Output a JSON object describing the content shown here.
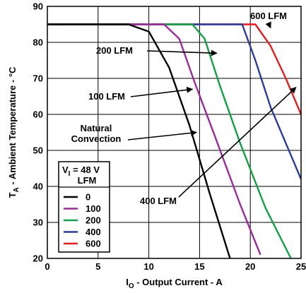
{
  "chart_data": {
    "type": "line",
    "title": "",
    "xlabel": {
      "prefix": "I",
      "sub": "O",
      "suffix": " - Output Current - A"
    },
    "ylabel": {
      "prefix": "T",
      "sub": "A",
      "suffix": " - Ambient Temperature - °C"
    },
    "xlim": [
      0,
      25
    ],
    "ylim": [
      20,
      90
    ],
    "xticks": [
      0,
      5,
      10,
      15,
      20,
      25
    ],
    "yticks": [
      20,
      30,
      40,
      50,
      60,
      70,
      80,
      90
    ],
    "grid": true,
    "legend": {
      "placement": "bottom-left",
      "title_line1": {
        "prefix": "V",
        "sub": "I",
        "suffix": " = 48 V"
      },
      "title_line2": "LFM"
    },
    "series": [
      {
        "name": "0",
        "color": "#000000",
        "x": [
          0,
          8.0,
          10.0,
          12.0,
          14.0,
          16.0,
          18.0
        ],
        "y": [
          85,
          85,
          83,
          73,
          57,
          38,
          20
        ]
      },
      {
        "name": "100",
        "color": "#9b2a9b",
        "x": [
          0,
          11.5,
          13.0,
          14.5,
          16.5,
          19.0,
          21.0
        ],
        "y": [
          85,
          85,
          81,
          69,
          54,
          35,
          21
        ]
      },
      {
        "name": "200",
        "color": "#11a044",
        "x": [
          0,
          14.3,
          15.5,
          17.0,
          19.0,
          21.5,
          24.0
        ],
        "y": [
          85,
          85,
          81,
          68,
          52,
          34,
          20
        ]
      },
      {
        "name": "400",
        "color": "#283c9a",
        "x": [
          0,
          19.2,
          20.5,
          22.0,
          23.5,
          25.0
        ],
        "y": [
          85,
          85,
          75,
          62,
          52,
          42
        ]
      },
      {
        "name": "600",
        "color": "#e31c1c",
        "x": [
          0,
          20.5,
          22.0,
          23.5,
          25.0
        ],
        "y": [
          85,
          85,
          79,
          70,
          60
        ]
      }
    ],
    "annotations": [
      {
        "id": "600",
        "text": "600 LFM",
        "lines": [
          "600 LFM"
        ],
        "arrow_to": [
          22.0,
          84
        ]
      },
      {
        "id": "200",
        "text": "200 LFM",
        "lines": [
          "200 LFM"
        ],
        "arrow_to": [
          16.7,
          77
        ]
      },
      {
        "id": "100",
        "text": "100 LFM",
        "lines": [
          "100 LFM"
        ],
        "arrow_to": [
          14.3,
          67
        ]
      },
      {
        "id": "nc",
        "text": "Natural Convection",
        "lines": [
          "Natural",
          "Convection"
        ],
        "arrow_to": [
          14.7,
          55
        ]
      },
      {
        "id": "400",
        "text": "400 LFM",
        "lines": [
          "400 LFM"
        ],
        "arrow_to": [
          24.5,
          67.5
        ]
      }
    ]
  }
}
